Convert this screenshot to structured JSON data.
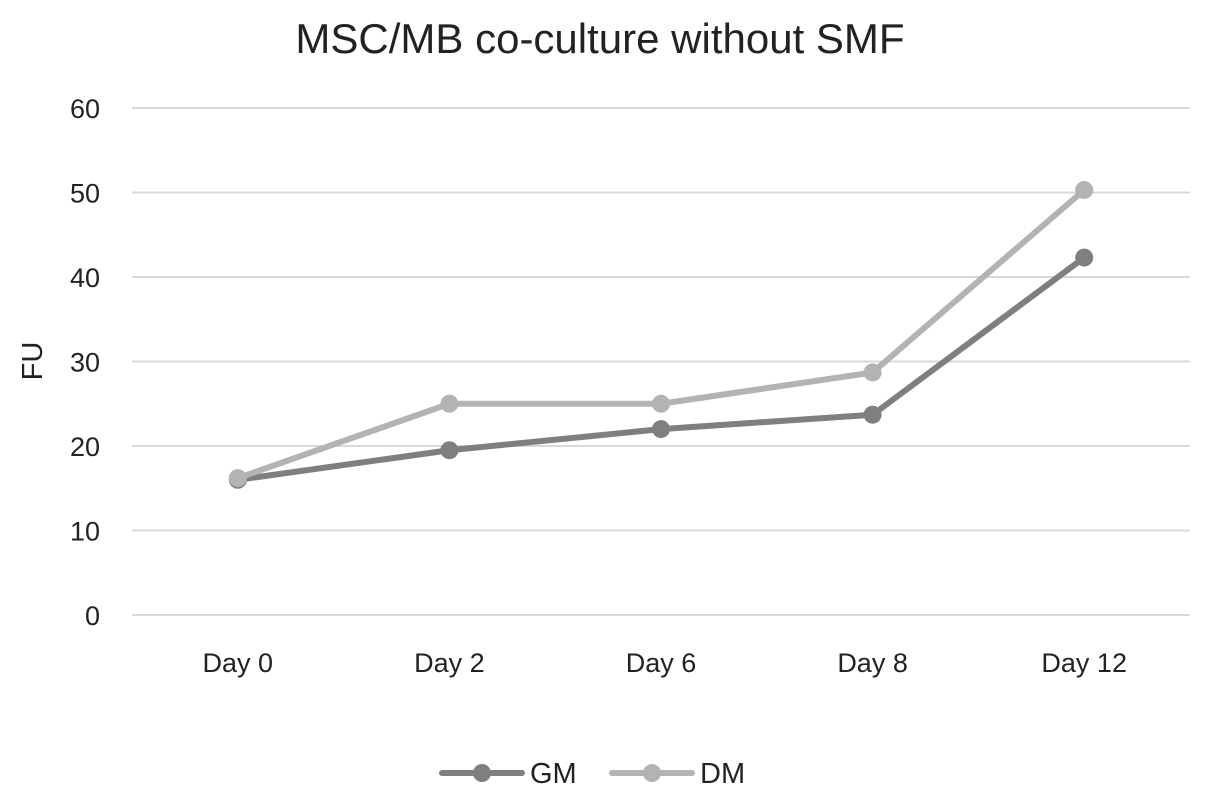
{
  "chart_data": {
    "type": "line",
    "title": "MSC/MB co-culture without SMF",
    "xlabel": "",
    "ylabel": "FU",
    "categories": [
      "Day 0",
      "Day 2",
      "Day 6",
      "Day 8",
      "Day 12"
    ],
    "ylim": [
      0,
      60
    ],
    "yticks": [
      0,
      10,
      20,
      30,
      40,
      50,
      60
    ],
    "grid": true,
    "legend_position": "bottom",
    "series": [
      {
        "name": "GM",
        "color": "#7f7f7f",
        "values": [
          16,
          19.5,
          22,
          23.7,
          42.3
        ]
      },
      {
        "name": "DM",
        "color": "#b3b3b3",
        "values": [
          16.2,
          25,
          25,
          28.7,
          50.3
        ]
      }
    ]
  }
}
